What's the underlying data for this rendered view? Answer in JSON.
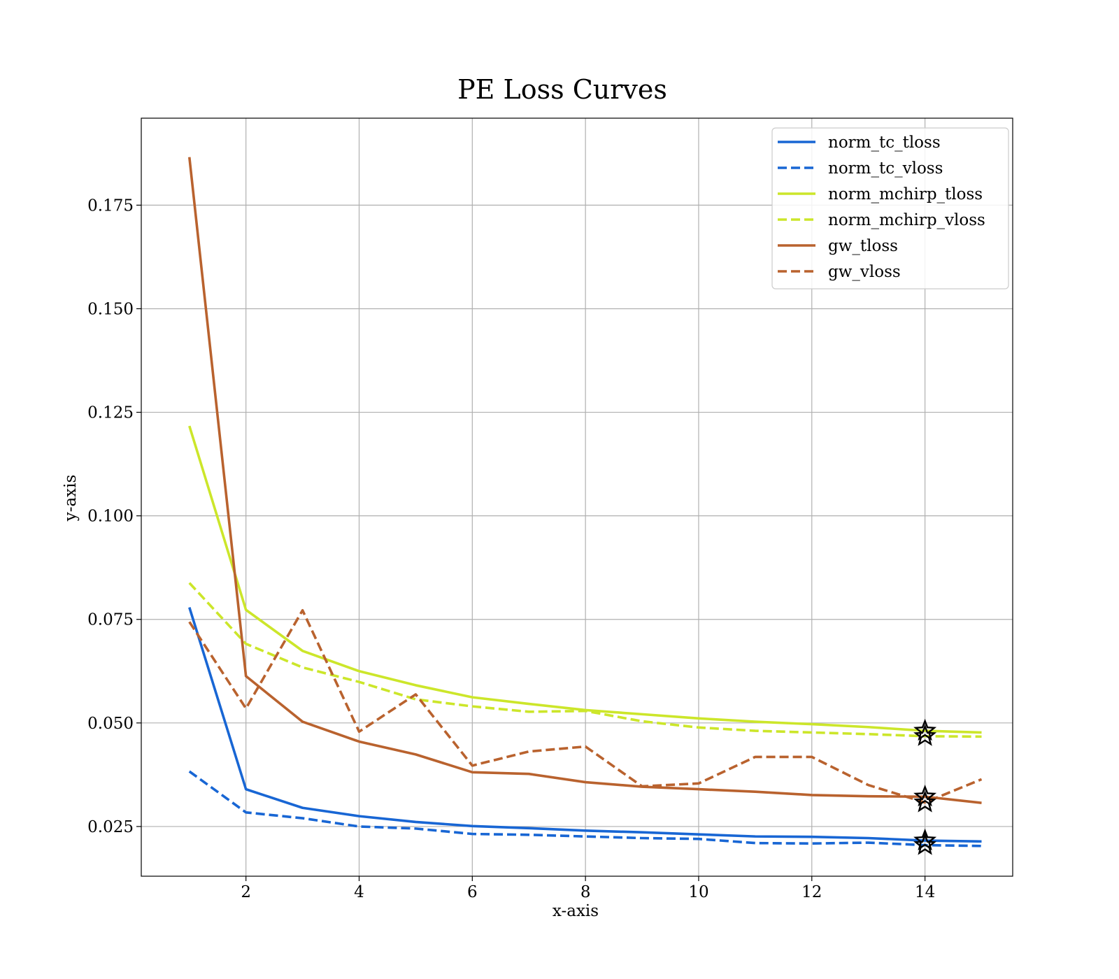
{
  "chart_data": {
    "type": "line",
    "title": "PE Loss Curves",
    "xlabel": "x-axis",
    "ylabel": "y-axis",
    "xlim": [
      0.15,
      15.55
    ],
    "ylim": [
      0.013,
      0.196
    ],
    "xticks": [
      2,
      4,
      6,
      8,
      10,
      12,
      14
    ],
    "xtick_labels": [
      "2",
      "4",
      "6",
      "8",
      "10",
      "12",
      "14"
    ],
    "yticks": [
      0.025,
      0.05,
      0.075,
      0.1,
      0.125,
      0.15,
      0.175
    ],
    "ytick_labels": [
      "0.025",
      "0.050",
      "0.075",
      "0.100",
      "0.125",
      "0.150",
      "0.175"
    ],
    "grid": true,
    "legend_position": "top-right",
    "x": [
      1,
      2,
      3,
      4,
      5,
      6,
      7,
      8,
      9,
      10,
      11,
      12,
      13,
      14,
      15
    ],
    "series": [
      {
        "name": "norm_tc_tloss",
        "color": "#1866D4",
        "dashed": false,
        "values": [
          0.0779,
          0.034,
          0.0295,
          0.0275,
          0.0261,
          0.0251,
          0.0246,
          0.024,
          0.0236,
          0.0231,
          0.0226,
          0.0225,
          0.0222,
          0.0216,
          0.0214
        ]
      },
      {
        "name": "norm_tc_vloss",
        "color": "#1866D4",
        "dashed": true,
        "values": [
          0.0383,
          0.0284,
          0.027,
          0.025,
          0.0245,
          0.0232,
          0.023,
          0.0226,
          0.0222,
          0.022,
          0.021,
          0.0209,
          0.0211,
          0.0205,
          0.0203
        ]
      },
      {
        "name": "norm_mchirp_tloss",
        "color": "#CCE62A",
        "dashed": false,
        "values": [
          0.1217,
          0.0773,
          0.0674,
          0.0625,
          0.0591,
          0.0562,
          0.0546,
          0.0531,
          0.0521,
          0.0511,
          0.0503,
          0.0497,
          0.049,
          0.0481,
          0.0477
        ]
      },
      {
        "name": "norm_mchirp_vloss",
        "color": "#CCE62A",
        "dashed": true,
        "values": [
          0.0838,
          0.0691,
          0.0634,
          0.0599,
          0.0557,
          0.054,
          0.0527,
          0.0529,
          0.0504,
          0.0489,
          0.0481,
          0.0477,
          0.0473,
          0.0468,
          0.0467
        ]
      },
      {
        "name": "gw_tloss",
        "color": "#B9622E",
        "dashed": false,
        "values": [
          0.1866,
          0.0613,
          0.0503,
          0.0455,
          0.0424,
          0.0381,
          0.0377,
          0.0357,
          0.0346,
          0.034,
          0.0334,
          0.0326,
          0.0323,
          0.0322,
          0.0307
        ]
      },
      {
        "name": "gw_vloss",
        "color": "#B9622E",
        "dashed": true,
        "values": [
          0.0744,
          0.0535,
          0.0772,
          0.0479,
          0.0569,
          0.0397,
          0.0431,
          0.0443,
          0.0347,
          0.0354,
          0.0418,
          0.0418,
          0.035,
          0.0308,
          0.0364
        ]
      }
    ],
    "markers": [
      {
        "type": "star",
        "x": 14,
        "y": 0.0481,
        "color": "#000000"
      },
      {
        "type": "star",
        "x": 14,
        "y": 0.0468,
        "color": "#000000"
      },
      {
        "type": "star",
        "x": 14,
        "y": 0.0322,
        "color": "#000000"
      },
      {
        "type": "star",
        "x": 14,
        "y": 0.0308,
        "color": "#000000"
      },
      {
        "type": "star",
        "x": 14,
        "y": 0.0216,
        "color": "#000000"
      },
      {
        "type": "star",
        "x": 14,
        "y": 0.0205,
        "color": "#000000"
      }
    ]
  }
}
